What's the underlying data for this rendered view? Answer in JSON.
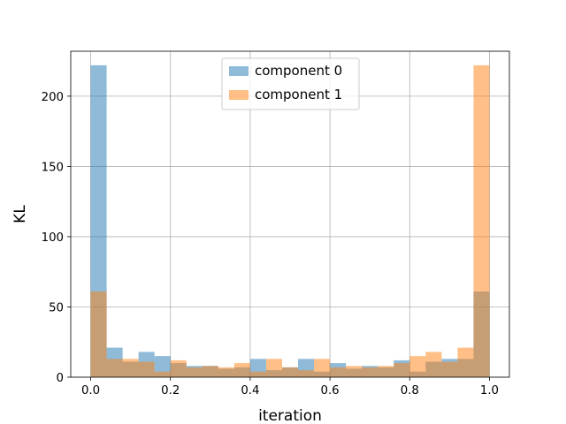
{
  "chart_data": {
    "type": "bar",
    "xlabel": "iteration",
    "ylabel": "KL",
    "xlim": [
      -0.05,
      1.05
    ],
    "ylim": [
      0,
      232
    ],
    "x_ticks": [
      0.0,
      0.2,
      0.4,
      0.6,
      0.8,
      1.0
    ],
    "x_tick_labels": [
      "0.0",
      "0.2",
      "0.4",
      "0.6",
      "0.8",
      "1.0"
    ],
    "y_ticks": [
      0,
      50,
      100,
      150,
      200
    ],
    "y_tick_labels": [
      "0",
      "50",
      "100",
      "150",
      "200"
    ],
    "grid": true,
    "legend": "top-center",
    "bin_width": 0.04,
    "bin_starts": [
      0.0,
      0.04,
      0.08,
      0.12,
      0.16,
      0.2,
      0.24,
      0.28,
      0.32,
      0.36,
      0.4,
      0.44,
      0.48,
      0.52,
      0.56,
      0.6,
      0.64,
      0.68,
      0.72,
      0.76,
      0.8,
      0.84,
      0.88,
      0.92,
      0.96
    ],
    "series": [
      {
        "name": "component 0",
        "color": "#1f77b4",
        "values": [
          222,
          21,
          11,
          18,
          15,
          10,
          8,
          8,
          6,
          7,
          13,
          5,
          7,
          13,
          4,
          10,
          6,
          8,
          7,
          12,
          4,
          11,
          13,
          13,
          61
        ]
      },
      {
        "name": "component 1",
        "color": "#ff7f0e",
        "values": [
          61,
          13,
          13,
          11,
          4,
          12,
          7,
          8,
          7,
          10,
          4,
          13,
          7,
          5,
          13,
          7,
          8,
          7,
          8,
          10,
          15,
          18,
          11,
          21,
          222
        ]
      }
    ]
  }
}
